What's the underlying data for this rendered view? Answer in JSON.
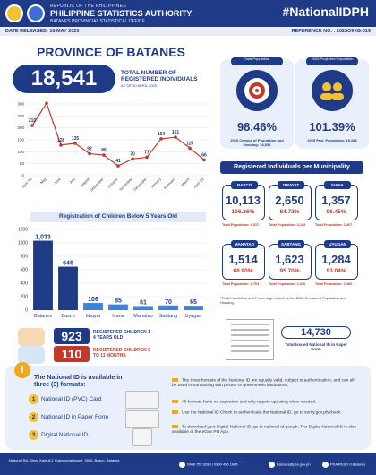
{
  "header": {
    "republic": "REPUBLIC OF THE PHILIPPINES",
    "agency": "PHILIPPINE STATISTICS AUTHORITY",
    "office": "BATANES PROVINCIAL STATISTICAL OFFICE",
    "hashtag": "#NationalIDPH"
  },
  "release": {
    "date": "DATE RELEASED: 16 MAY 2025",
    "reference": "REFERENCE NO. : 2025O9-IG-019"
  },
  "province": "PROVINCE OF BATANES",
  "total": {
    "value": "18,541",
    "label": "TOTAL NUMBER OF REGISTERED INDIVIDUALS",
    "asof": "AS OF 30 APRIL 2025"
  },
  "kpis": {
    "population": {
      "caption": "Total Population",
      "pct": "98.46%",
      "note": "2020 Census of Population and Housing: 18,831"
    },
    "projected": {
      "caption": "2025 Projected Population",
      "pct": "101.39%",
      "note": "2025 Proj. Population: 18,286"
    }
  },
  "muni_header": "Registered Individuals per Municipality",
  "municipalities": [
    {
      "name": "BASCO",
      "value": "10,113",
      "pct": "106.26%",
      "total": "Total Population: 9,517"
    },
    {
      "name": "ITBAYAT",
      "value": "2,650",
      "pct": "84.72%",
      "total": "Total Population: 3,128"
    },
    {
      "name": "IVANA",
      "value": "1,357",
      "pct": "96.45%",
      "total": "Total Population: 1,407"
    },
    {
      "name": "MAHATAO",
      "value": "1,514",
      "pct": "88.90%",
      "total": "Total Population: 1,703"
    },
    {
      "name": "SABTANG",
      "value": "1,623",
      "pct": "95.70%",
      "total": "Total Population: 1,696"
    },
    {
      "name": "UYUGAN",
      "value": "1,284",
      "pct": "93.04%",
      "total": "Total Population: 1,380"
    }
  ],
  "muni_footnote": "*Total Population and Percentage based on the 2020 Census of Population and Housing.",
  "children": {
    "header": "Registration of Children Below 5 Years Old",
    "age1_value": "923",
    "age1_label": "REGISTERED CHILDREN 1 - 4 YEARS OLD",
    "age2_value": "110",
    "age2_label": "REGISTERED CHILDREN 0 TO 11 MONTHS"
  },
  "paper": {
    "value": "14,730",
    "label": "Total Issued National ID in Paper Form"
  },
  "formats": {
    "heading": "The National ID is available in three (3) formats:",
    "items": [
      "National ID (PVC) Card",
      "National ID in Paper Form",
      "Digital National ID"
    ],
    "numbers": [
      "1",
      "2",
      "3"
    ],
    "notes": [
      "The three formats of the National ID are equally valid, subject to authentication, and can all be used in transacting with private or government institutions.",
      "All formats have no expiration and only require updating when needed.",
      "Use the National ID Check to authenticate the National ID, go to verify.gov.ph/check.",
      "To download your Digital National ID, go to national-id.gov.ph. The Digital National ID is also available at the eGov PH App."
    ]
  },
  "footer": {
    "address": "National Rd., Brgy. Kaiduli 1 (Kayvhonaniman), 3900, Basco, Batanes",
    "phone": "0908 752 9289 | 0990 456 1606",
    "email": "batanes@psa.gov.ph",
    "fb": "PSA RSSO II Batanes"
  },
  "chart_data": [
    {
      "type": "line",
      "title": "",
      "x": [
        "April '24",
        "May",
        "June",
        "July",
        "August",
        "September",
        "October",
        "November",
        "December",
        "January",
        "February",
        "March",
        "April '25"
      ],
      "values": [
        210,
        303,
        128,
        135,
        92,
        86,
        41,
        70,
        77,
        154,
        161,
        115,
        66
      ],
      "ylim": [
        0,
        300
      ],
      "yticks": [
        0,
        50,
        100,
        150,
        200,
        250,
        300
      ],
      "color": "#c0392b"
    },
    {
      "type": "bar",
      "title": "Registration of Children Below 5 Years Old",
      "categories": [
        "Batanes",
        "Basco",
        "Itbayat",
        "Ivana",
        "Mahatao",
        "Sabtang",
        "Uyugan"
      ],
      "values": [
        1033,
        646,
        106,
        85,
        61,
        70,
        65
      ],
      "labels": [
        "1,033",
        "646",
        "106",
        "85",
        "61",
        "70",
        "65"
      ],
      "ylim": [
        0,
        1200
      ],
      "yticks": [
        0,
        200,
        400,
        600,
        800,
        1000,
        1200
      ],
      "colors": [
        "#1f3b87",
        "#1f3b87",
        "#3b82d8",
        "#3b82d8",
        "#3b82d8",
        "#3b82d8",
        "#3b82d8"
      ]
    }
  ]
}
